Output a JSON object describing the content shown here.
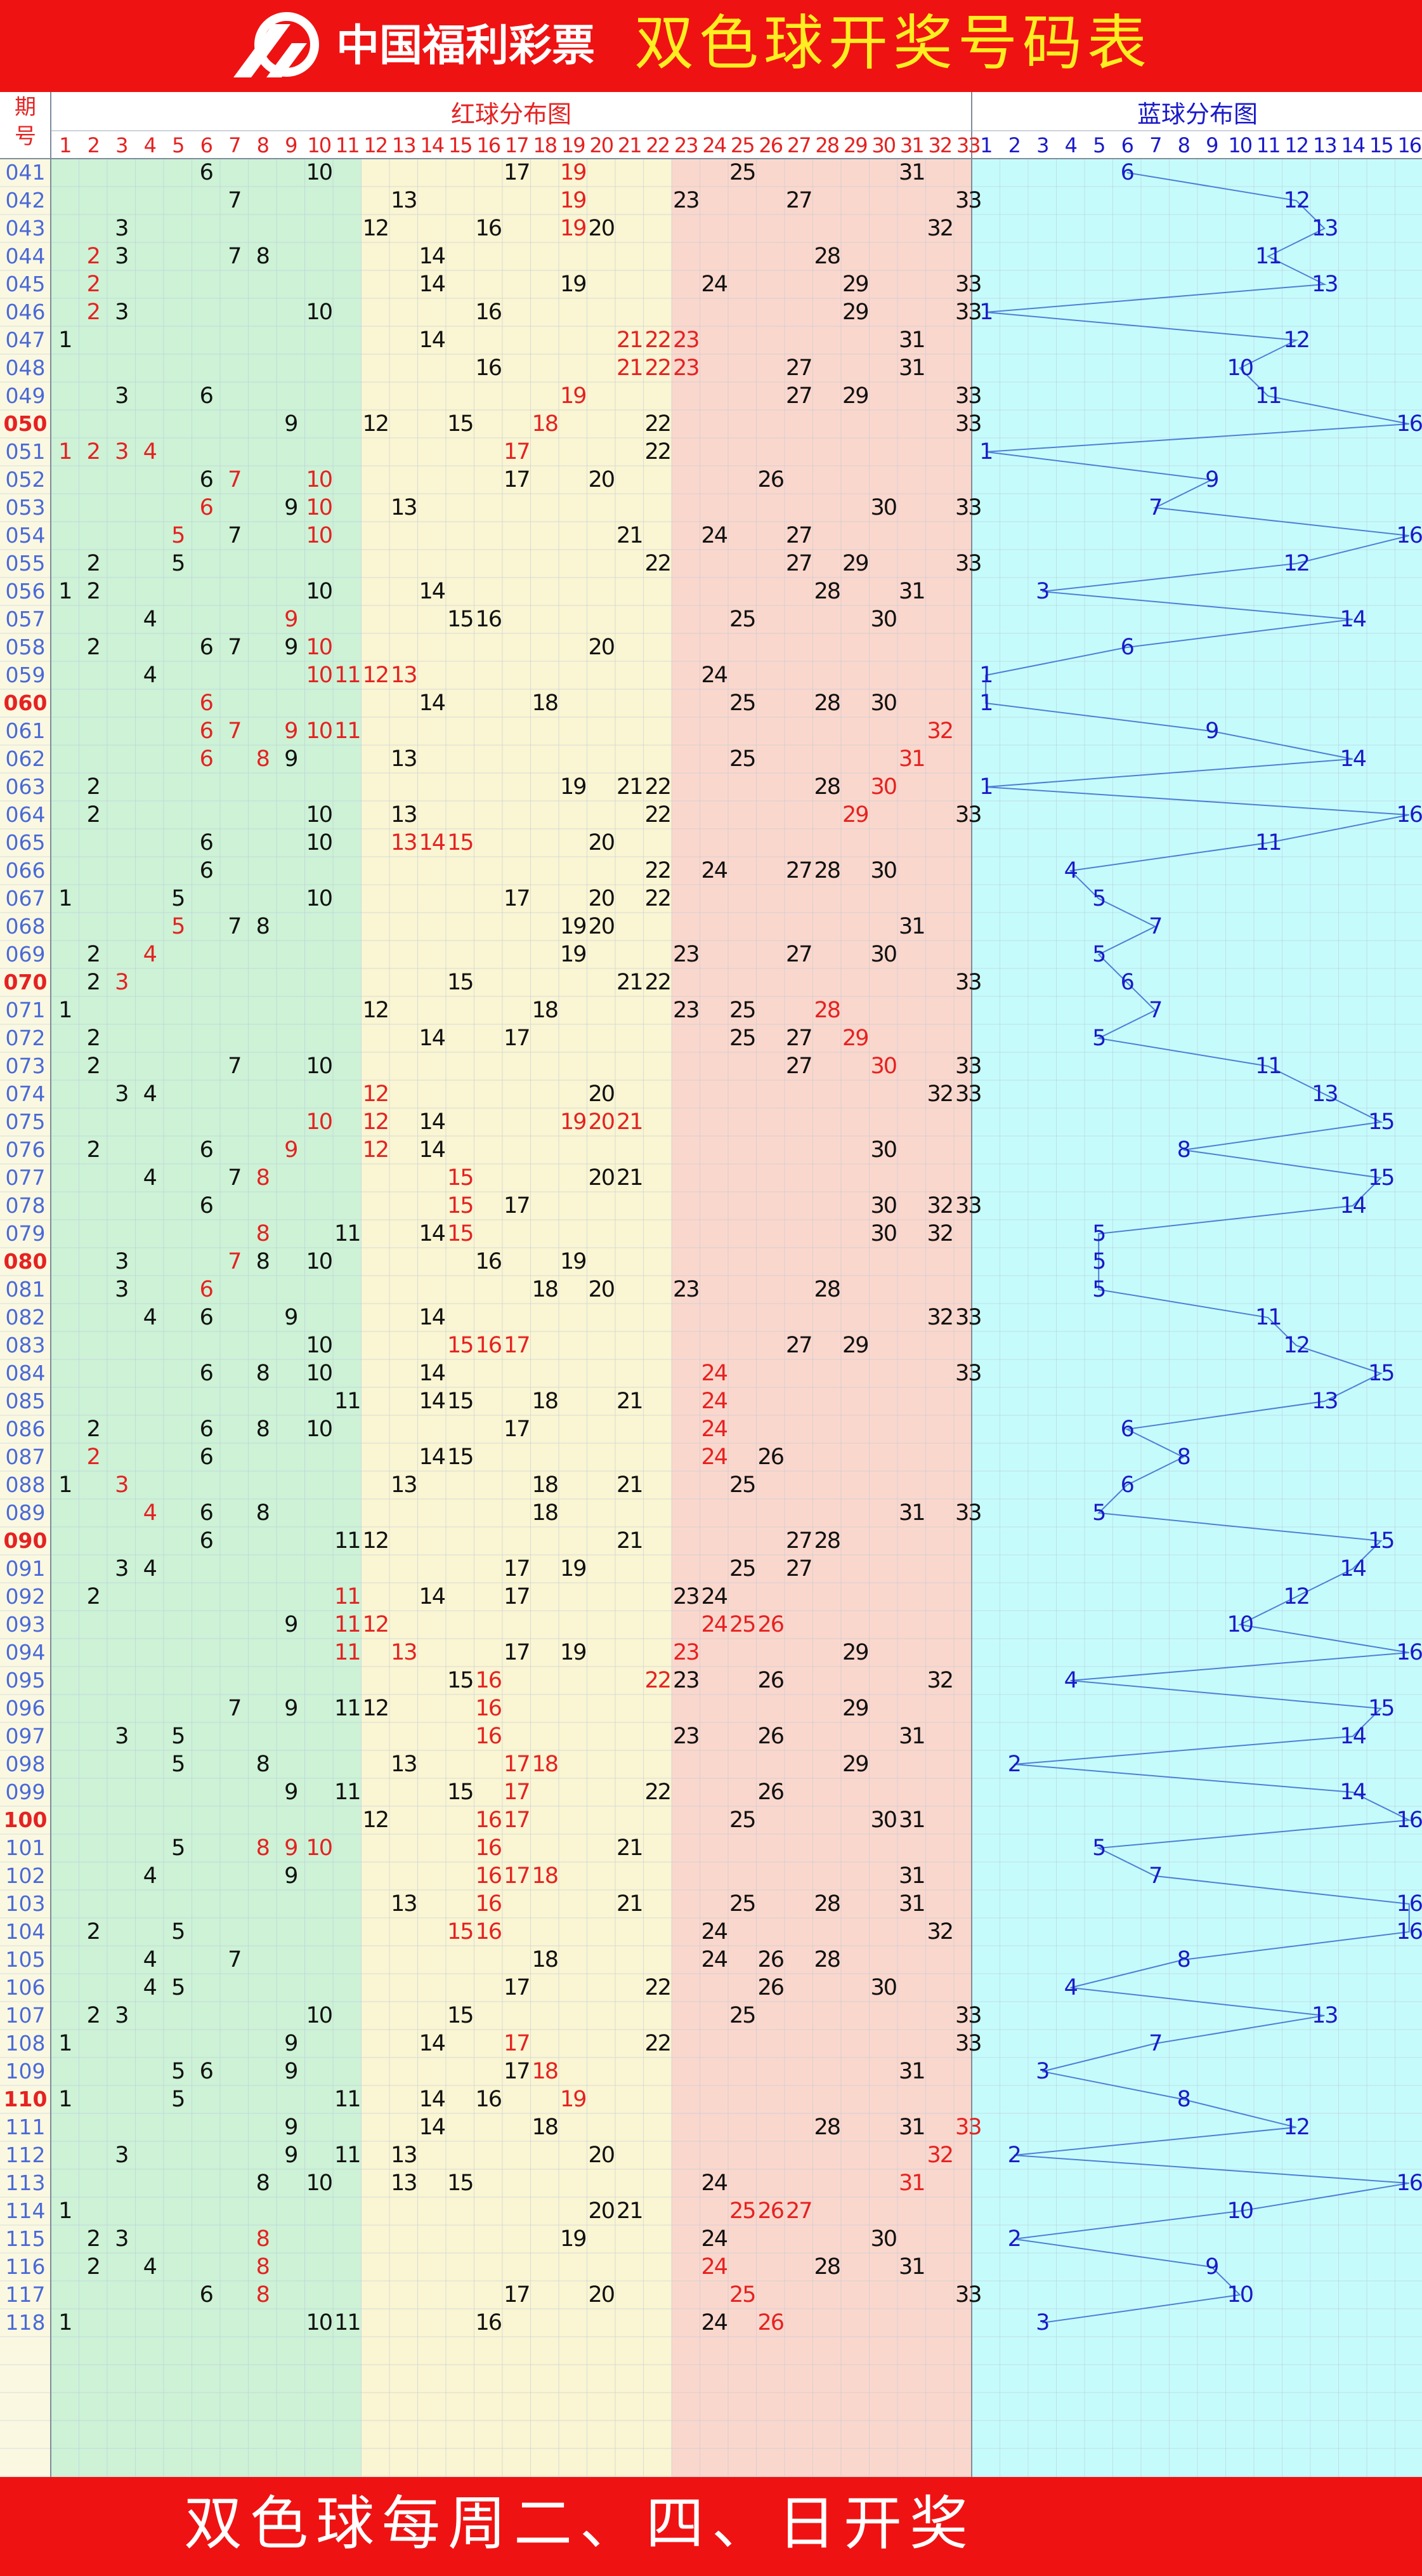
{
  "header": {
    "logo_text": "中国福利彩票",
    "title": "双色球开奖号码表"
  },
  "footer": {
    "text": "双色球每周二、四、日开奖"
  },
  "colors": {
    "banner": "#ef1212",
    "title": "#ffee22",
    "red_number": "#e52222",
    "blue_number": "#1a1ac8",
    "period_label": "#4a6ad8",
    "zone_green": "#cdf2d6",
    "zone_yellow": "#faf5d2",
    "zone_pink": "#fad7cc",
    "zone_cyan": "#c6fbfb",
    "grid": "#b9c9dc",
    "blue_line": "#4d7fd8"
  },
  "chart_data": {
    "type": "table",
    "header": {
      "period": "期号",
      "red_title": "红球分布图",
      "blue_title": "蓝球分布图"
    },
    "red_columns": [
      "1",
      "2",
      "3",
      "4",
      "5",
      "6",
      "7",
      "8",
      "9",
      "10",
      "11",
      "12",
      "13",
      "14",
      "15",
      "16",
      "17",
      "18",
      "19",
      "20",
      "21",
      "22",
      "23",
      "24",
      "25",
      "26",
      "27",
      "28",
      "29",
      "30",
      "31",
      "32",
      "33"
    ],
    "blue_columns": [
      "1",
      "2",
      "3",
      "4",
      "5",
      "6",
      "7",
      "8",
      "9",
      "10",
      "11",
      "12",
      "13",
      "14",
      "15",
      "16"
    ],
    "zones": {
      "green": [
        1,
        11
      ],
      "yellow": [
        12,
        22
      ],
      "pink": [
        23,
        33
      ]
    },
    "draws": [
      {
        "p": "041",
        "red": [
          6,
          10,
          17,
          19,
          25,
          31
        ],
        "blue": 6,
        "rep": [
          19
        ]
      },
      {
        "p": "042",
        "red": [
          7,
          13,
          19,
          23,
          27,
          33
        ],
        "blue": 12,
        "rep": [
          19
        ]
      },
      {
        "p": "043",
        "red": [
          3,
          12,
          16,
          19,
          20,
          32
        ],
        "blue": 13,
        "rep": [
          19
        ]
      },
      {
        "p": "044",
        "red": [
          2,
          3,
          7,
          8,
          14,
          28
        ],
        "blue": 11,
        "rep": [
          2
        ]
      },
      {
        "p": "045",
        "red": [
          2,
          14,
          19,
          24,
          29,
          33
        ],
        "blue": 13,
        "rep": [
          2
        ]
      },
      {
        "p": "046",
        "red": [
          2,
          3,
          10,
          16,
          29,
          33
        ],
        "blue": 1,
        "rep": [
          2
        ]
      },
      {
        "p": "047",
        "red": [
          1,
          14,
          21,
          22,
          23,
          31
        ],
        "blue": 12,
        "rep": [
          21,
          22,
          23
        ]
      },
      {
        "p": "048",
        "red": [
          16,
          21,
          22,
          23,
          27,
          31
        ],
        "blue": 10,
        "rep": [
          21,
          22,
          23
        ]
      },
      {
        "p": "049",
        "red": [
          3,
          6,
          19,
          27,
          29,
          33
        ],
        "blue": 11,
        "rep": [
          19
        ]
      },
      {
        "p": "050",
        "red": [
          9,
          12,
          15,
          18,
          22,
          33
        ],
        "blue": 16,
        "rep": [
          18
        ]
      },
      {
        "p": "051",
        "red": [
          1,
          2,
          3,
          4,
          17,
          22
        ],
        "blue": 1,
        "rep": [
          1,
          2,
          3,
          4,
          17
        ]
      },
      {
        "p": "052",
        "red": [
          6,
          7,
          10,
          17,
          20,
          26
        ],
        "blue": 9,
        "rep": [
          7,
          10
        ]
      },
      {
        "p": "053",
        "red": [
          6,
          9,
          10,
          13,
          30,
          33
        ],
        "blue": 7,
        "rep": [
          6,
          10
        ]
      },
      {
        "p": "054",
        "red": [
          5,
          7,
          10,
          21,
          24,
          27
        ],
        "blue": 16,
        "rep": [
          5,
          10
        ]
      },
      {
        "p": "055",
        "red": [
          2,
          5,
          22,
          27,
          29,
          33
        ],
        "blue": 12,
        "rep": []
      },
      {
        "p": "056",
        "red": [
          1,
          2,
          10,
          14,
          28,
          31
        ],
        "blue": 3,
        "rep": []
      },
      {
        "p": "057",
        "red": [
          4,
          9,
          15,
          16,
          25,
          30
        ],
        "blue": 14,
        "rep": [
          9
        ]
      },
      {
        "p": "058",
        "red": [
          2,
          6,
          7,
          9,
          10,
          20
        ],
        "blue": 6,
        "rep": [
          10
        ]
      },
      {
        "p": "059",
        "red": [
          4,
          10,
          11,
          12,
          13,
          24
        ],
        "blue": 1,
        "rep": [
          10,
          11,
          12,
          13
        ]
      },
      {
        "p": "060",
        "red": [
          6,
          14,
          18,
          25,
          28,
          30
        ],
        "blue": 1,
        "rep": [
          6
        ]
      },
      {
        "p": "061",
        "red": [
          6,
          7,
          9,
          10,
          11,
          32
        ],
        "blue": 9,
        "rep": [
          6,
          7,
          9,
          10,
          11,
          32
        ]
      },
      {
        "p": "062",
        "red": [
          6,
          8,
          9,
          13,
          25,
          31
        ],
        "blue": 14,
        "rep": [
          6,
          8,
          31
        ]
      },
      {
        "p": "063",
        "red": [
          2,
          19,
          21,
          22,
          28,
          30
        ],
        "blue": 1,
        "rep": [
          30
        ]
      },
      {
        "p": "064",
        "red": [
          2,
          10,
          13,
          22,
          29,
          33
        ],
        "blue": 16,
        "rep": [
          29
        ]
      },
      {
        "p": "065",
        "red": [
          6,
          10,
          13,
          14,
          15,
          20
        ],
        "blue": 11,
        "rep": [
          13,
          14,
          15
        ]
      },
      {
        "p": "066",
        "red": [
          6,
          22,
          24,
          27,
          28,
          30
        ],
        "blue": 4,
        "rep": []
      },
      {
        "p": "067",
        "red": [
          1,
          5,
          10,
          17,
          20,
          22
        ],
        "blue": 5,
        "rep": []
      },
      {
        "p": "068",
        "red": [
          5,
          7,
          8,
          19,
          20,
          31
        ],
        "blue": 7,
        "rep": [
          5
        ]
      },
      {
        "p": "069",
        "red": [
          2,
          4,
          19,
          23,
          27,
          30
        ],
        "blue": 5,
        "rep": [
          4
        ]
      },
      {
        "p": "070",
        "red": [
          2,
          3,
          15,
          21,
          22,
          33
        ],
        "blue": 6,
        "rep": [
          3
        ]
      },
      {
        "p": "071",
        "red": [
          1,
          12,
          18,
          23,
          25,
          28
        ],
        "blue": 7,
        "rep": [
          28
        ]
      },
      {
        "p": "072",
        "red": [
          2,
          14,
          17,
          25,
          27,
          29
        ],
        "blue": 5,
        "rep": [
          29
        ]
      },
      {
        "p": "073",
        "red": [
          2,
          7,
          10,
          27,
          30,
          33
        ],
        "blue": 11,
        "rep": [
          30
        ]
      },
      {
        "p": "074",
        "red": [
          3,
          4,
          12,
          20,
          32,
          33
        ],
        "blue": 13,
        "rep": [
          12
        ]
      },
      {
        "p": "075",
        "red": [
          10,
          12,
          14,
          19,
          20,
          21
        ],
        "blue": 15,
        "rep": [
          10,
          12,
          19,
          20,
          21
        ]
      },
      {
        "p": "076",
        "red": [
          2,
          6,
          9,
          12,
          14,
          30
        ],
        "blue": 8,
        "rep": [
          9,
          12
        ]
      },
      {
        "p": "077",
        "red": [
          4,
          7,
          8,
          15,
          20,
          21
        ],
        "blue": 15,
        "rep": [
          8,
          15
        ]
      },
      {
        "p": "078",
        "red": [
          6,
          15,
          17,
          30,
          32,
          33
        ],
        "blue": 14,
        "rep": [
          15
        ]
      },
      {
        "p": "079",
        "red": [
          8,
          11,
          14,
          15,
          30,
          32
        ],
        "blue": 5,
        "rep": [
          8,
          15
        ]
      },
      {
        "p": "080",
        "red": [
          3,
          7,
          8,
          10,
          16,
          19
        ],
        "blue": 5,
        "rep": [
          7
        ]
      },
      {
        "p": "081",
        "red": [
          3,
          6,
          18,
          20,
          23,
          28
        ],
        "blue": 5,
        "rep": [
          6
        ]
      },
      {
        "p": "082",
        "red": [
          4,
          6,
          9,
          14,
          32,
          33
        ],
        "blue": 11,
        "rep": []
      },
      {
        "p": "083",
        "red": [
          10,
          15,
          16,
          17,
          27,
          29
        ],
        "blue": 12,
        "rep": [
          15,
          16,
          17
        ]
      },
      {
        "p": "084",
        "red": [
          6,
          8,
          10,
          14,
          24,
          33
        ],
        "blue": 15,
        "rep": [
          24
        ]
      },
      {
        "p": "085",
        "red": [
          11,
          14,
          15,
          18,
          21,
          24
        ],
        "blue": 13,
        "rep": [
          24
        ]
      },
      {
        "p": "086",
        "red": [
          2,
          6,
          8,
          10,
          17,
          24
        ],
        "blue": 6,
        "rep": [
          24
        ]
      },
      {
        "p": "087",
        "red": [
          2,
          6,
          14,
          15,
          24,
          26
        ],
        "blue": 8,
        "rep": [
          2,
          24
        ]
      },
      {
        "p": "088",
        "red": [
          1,
          3,
          13,
          18,
          21,
          25
        ],
        "blue": 6,
        "rep": [
          3
        ]
      },
      {
        "p": "089",
        "red": [
          4,
          6,
          8,
          18,
          31,
          33
        ],
        "blue": 5,
        "rep": [
          4
        ]
      },
      {
        "p": "090",
        "red": [
          6,
          11,
          12,
          21,
          27,
          28
        ],
        "blue": 15,
        "rep": []
      },
      {
        "p": "091",
        "red": [
          3,
          4,
          17,
          19,
          25,
          27
        ],
        "blue": 14,
        "rep": []
      },
      {
        "p": "092",
        "red": [
          2,
          11,
          14,
          17,
          23,
          24
        ],
        "blue": 12,
        "rep": [
          11
        ]
      },
      {
        "p": "093",
        "red": [
          9,
          11,
          12,
          24,
          25,
          26
        ],
        "blue": 10,
        "rep": [
          11,
          12,
          24,
          25,
          26
        ]
      },
      {
        "p": "094",
        "red": [
          11,
          13,
          17,
          19,
          23,
          29
        ],
        "blue": 16,
        "rep": [
          11,
          13,
          23
        ]
      },
      {
        "p": "095",
        "red": [
          15,
          16,
          22,
          23,
          26,
          32
        ],
        "blue": 4,
        "rep": [
          16,
          22
        ]
      },
      {
        "p": "096",
        "red": [
          7,
          9,
          11,
          12,
          16,
          29
        ],
        "blue": 15,
        "rep": [
          16
        ]
      },
      {
        "p": "097",
        "red": [
          3,
          5,
          16,
          23,
          26,
          31
        ],
        "blue": 14,
        "rep": [
          16
        ]
      },
      {
        "p": "098",
        "red": [
          5,
          8,
          13,
          17,
          18,
          29
        ],
        "blue": 2,
        "rep": [
          17,
          18
        ]
      },
      {
        "p": "099",
        "red": [
          9,
          11,
          15,
          17,
          22,
          26
        ],
        "blue": 14,
        "rep": [
          17
        ]
      },
      {
        "p": "100",
        "red": [
          12,
          16,
          17,
          25,
          30,
          31
        ],
        "blue": 16,
        "rep": [
          16,
          17
        ]
      },
      {
        "p": "101",
        "red": [
          5,
          8,
          9,
          10,
          16,
          21
        ],
        "blue": 5,
        "rep": [
          8,
          9,
          10,
          16
        ]
      },
      {
        "p": "102",
        "red": [
          4,
          9,
          16,
          17,
          18,
          31
        ],
        "blue": 7,
        "rep": [
          16,
          17,
          18
        ]
      },
      {
        "p": "103",
        "red": [
          13,
          16,
          21,
          25,
          28,
          31
        ],
        "blue": 16,
        "rep": [
          16
        ]
      },
      {
        "p": "104",
        "red": [
          2,
          5,
          15,
          16,
          24,
          32
        ],
        "blue": 16,
        "rep": [
          15,
          16
        ]
      },
      {
        "p": "105",
        "red": [
          4,
          7,
          18,
          24,
          26,
          28
        ],
        "blue": 8,
        "rep": []
      },
      {
        "p": "106",
        "red": [
          4,
          5,
          17,
          22,
          26,
          30
        ],
        "blue": 4,
        "rep": []
      },
      {
        "p": "107",
        "red": [
          2,
          3,
          10,
          15,
          25,
          33
        ],
        "blue": 13,
        "rep": []
      },
      {
        "p": "108",
        "red": [
          1,
          9,
          14,
          17,
          22,
          33
        ],
        "blue": 7,
        "rep": [
          17
        ]
      },
      {
        "p": "109",
        "red": [
          5,
          6,
          9,
          17,
          18,
          31
        ],
        "blue": 3,
        "rep": [
          18
        ]
      },
      {
        "p": "110",
        "red": [
          1,
          5,
          11,
          14,
          16,
          19
        ],
        "blue": 8,
        "rep": [
          19
        ]
      },
      {
        "p": "111",
        "red": [
          9,
          14,
          18,
          28,
          31,
          33
        ],
        "blue": 12,
        "rep": [
          33
        ]
      },
      {
        "p": "112",
        "red": [
          3,
          9,
          11,
          13,
          20,
          32
        ],
        "blue": 2,
        "rep": [
          32
        ]
      },
      {
        "p": "113",
        "red": [
          8,
          10,
          13,
          15,
          24,
          31
        ],
        "blue": 16,
        "rep": [
          31
        ]
      },
      {
        "p": "114",
        "red": [
          1,
          20,
          21,
          25,
          26,
          27
        ],
        "blue": 10,
        "rep": [
          25,
          26,
          27
        ]
      },
      {
        "p": "115",
        "red": [
          2,
          3,
          8,
          19,
          24,
          30
        ],
        "blue": 2,
        "rep": [
          8
        ]
      },
      {
        "p": "116",
        "red": [
          2,
          4,
          8,
          24,
          28,
          31
        ],
        "blue": 9,
        "rep": [
          8,
          24
        ]
      },
      {
        "p": "117",
        "red": [
          6,
          8,
          17,
          20,
          25,
          33
        ],
        "blue": 10,
        "rep": [
          8,
          25
        ]
      },
      {
        "p": "118",
        "red": [
          1,
          10,
          11,
          16,
          24,
          26
        ],
        "blue": 3,
        "rep": [
          26
        ]
      }
    ]
  }
}
